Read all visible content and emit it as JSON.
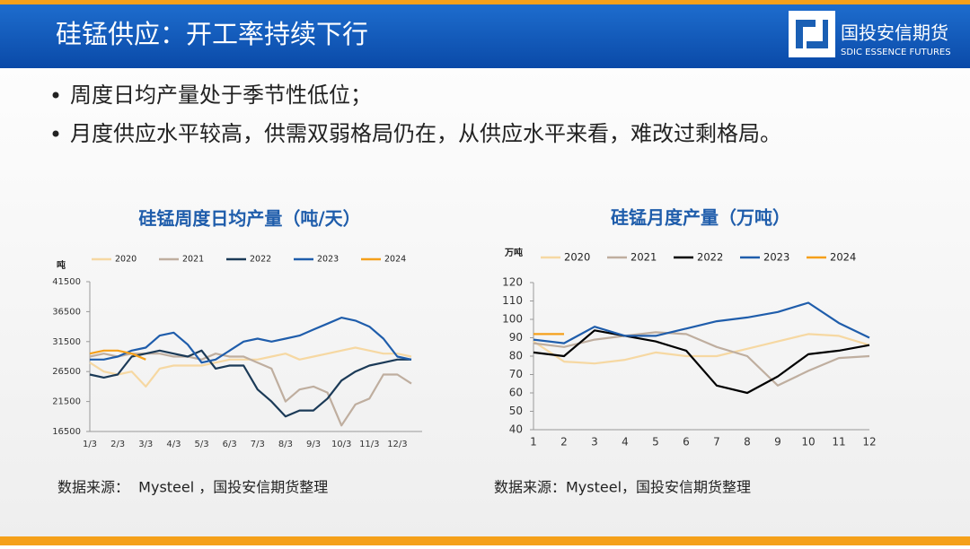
{
  "header": {
    "title": "硅锰供应：开工率持续下行",
    "logo_cn": "国投安信期货",
    "logo_en": "SDIC ESSENCE FUTURES"
  },
  "bullets": [
    "周度日均产量处于季节性低位；",
    "月度供应水平较高，供需双弱格局仍在，从供应水平来看，难改过剩格局。"
  ],
  "sources": [
    "数据来源：  Mysteel ，国投安信期货整理",
    "数据来源：Mysteel，国投安信期货整理"
  ],
  "chart_data": [
    {
      "type": "line",
      "title": "硅锰周度日均产量（吨/天）",
      "y_label": "吨",
      "categories": [
        "1/3",
        null,
        "2/3",
        null,
        "3/3",
        null,
        "4/3",
        null,
        "5/3",
        null,
        "6/3",
        null,
        "7/3",
        null,
        "8/3",
        null,
        "9/3",
        null,
        "10/3",
        null,
        "11/3",
        null,
        "12/3",
        null
      ],
      "ylim": [
        16500,
        41500
      ],
      "yticks": [
        16500,
        21500,
        26500,
        31500,
        36500,
        41500
      ],
      "grid": false,
      "series": [
        {
          "name": "2020",
          "color": "#f6d8a2",
          "values": [
            28000,
            26500,
            26000,
            26500,
            24000,
            27000,
            27500,
            27500,
            27500,
            28000,
            28500,
            28500,
            28500,
            29000,
            29500,
            28500,
            29000,
            29500,
            30000,
            30500,
            30000,
            29500,
            29500,
            29000
          ]
        },
        {
          "name": "2021",
          "color": "#bfae9f",
          "values": [
            29000,
            29500,
            29000,
            29500,
            29500,
            29500,
            29000,
            29000,
            28500,
            29500,
            29000,
            29000,
            28000,
            27000,
            21500,
            23500,
            24000,
            23000,
            17500,
            21000,
            22000,
            26000,
            26000,
            24500
          ]
        },
        {
          "name": "2022",
          "color": "#1b3a57",
          "values": [
            26000,
            25500,
            26000,
            29000,
            29500,
            30000,
            29500,
            29000,
            30000,
            27000,
            27500,
            27500,
            23500,
            21500,
            19000,
            20000,
            20000,
            22000,
            25000,
            26500,
            27500,
            28000,
            28500,
            28500
          ]
        },
        {
          "name": "2023",
          "color": "#1f5dab",
          "values": [
            28500,
            28500,
            29000,
            30000,
            30500,
            32500,
            33000,
            31000,
            28000,
            28500,
            30000,
            31500,
            32000,
            31500,
            32000,
            32500,
            33500,
            34500,
            35500,
            35000,
            34000,
            32000,
            29000,
            28500
          ]
        },
        {
          "name": "2024",
          "color": "#f5a01a",
          "values": [
            29500,
            30000,
            30000,
            29500,
            28500,
            null,
            null,
            null,
            null,
            null,
            null,
            null,
            null,
            null,
            null,
            null,
            null,
            null,
            null,
            null,
            null,
            null,
            null,
            null
          ]
        }
      ]
    },
    {
      "type": "line",
      "title": "硅锰月度产量（万吨）",
      "y_label": "万吨",
      "categories": [
        "1",
        "2",
        "3",
        "4",
        "5",
        "6",
        "7",
        "8",
        "9",
        "10",
        "11",
        "12"
      ],
      "ylim": [
        40,
        120
      ],
      "yticks": [
        40,
        50,
        60,
        70,
        80,
        90,
        100,
        110,
        120
      ],
      "grid": false,
      "series": [
        {
          "name": "2020",
          "color": "#f6d8a2",
          "values": [
            88,
            77,
            76,
            78,
            82,
            80,
            80,
            84,
            88,
            92,
            91,
            86
          ]
        },
        {
          "name": "2021",
          "color": "#bfae9f",
          "values": [
            87,
            85,
            89,
            91,
            93,
            92,
            85,
            80,
            64,
            72,
            79,
            80
          ]
        },
        {
          "name": "2022",
          "color": "#000000",
          "values": [
            82,
            80,
            94,
            91,
            88,
            83,
            64,
            60,
            69,
            81,
            83,
            86
          ]
        },
        {
          "name": "2023",
          "color": "#1f5dab",
          "values": [
            89,
            87,
            96,
            91,
            91,
            95,
            99,
            101,
            104,
            109,
            98,
            90
          ]
        },
        {
          "name": "2024",
          "color": "#f5a01a",
          "values": [
            92,
            92,
            null,
            null,
            null,
            null,
            null,
            null,
            null,
            null,
            null,
            null
          ]
        }
      ]
    }
  ]
}
